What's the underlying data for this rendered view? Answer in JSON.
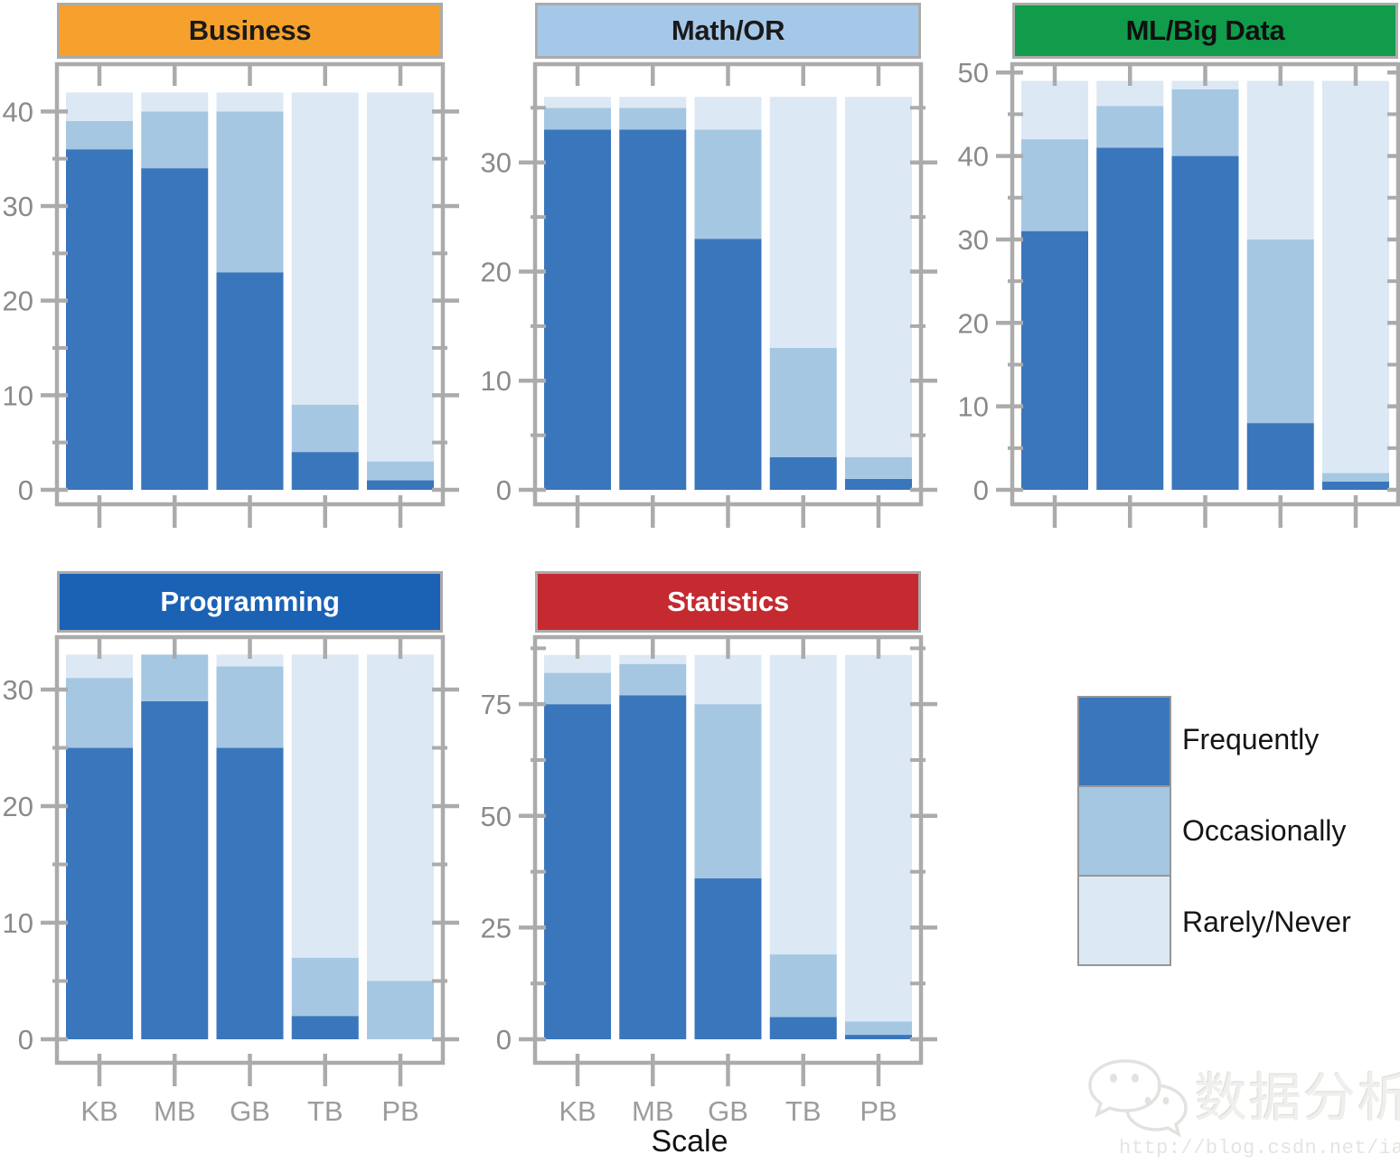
{
  "figure": {
    "xlabel": "Scale",
    "watermark": {
      "title": "数据分析",
      "url": "http://blog.csdn.net/iascchen"
    }
  },
  "legend": {
    "position": "right-bottom",
    "items": [
      {
        "label": "Frequently",
        "color": "#3A76BC"
      },
      {
        "label": "Occasionally",
        "color": "#A5C7E2"
      },
      {
        "label": "Rarely/Never",
        "color": "#DCE8F4"
      }
    ]
  },
  "chart_data": {
    "type": "bar",
    "stacked": true,
    "grid": false,
    "categories": [
      "KB",
      "MB",
      "GB",
      "TB",
      "PB"
    ],
    "xlabel": "Scale",
    "series_order": [
      "Frequently",
      "Occasionally",
      "Rarely/Never"
    ],
    "series_colors": {
      "Frequently": "#3A76BC",
      "Occasionally": "#A5C7E2",
      "Rarely/Never": "#DCE8F4"
    },
    "frame_color": "#ABABAB",
    "panels": [
      {
        "id": "business",
        "title": "Business",
        "header_color": "#F6A12D",
        "header_text_color": "#1A1A1A",
        "ylim": [
          0,
          45
        ],
        "yticks": [
          0,
          10,
          20,
          30,
          40
        ],
        "yticks_minor": [
          5,
          15,
          25,
          35
        ],
        "series": [
          {
            "name": "Frequently",
            "values": [
              36,
              34,
              23,
              4,
              1
            ]
          },
          {
            "name": "Occasionally",
            "values": [
              3,
              6,
              17,
              5,
              2
            ]
          },
          {
            "name": "Rarely/Never",
            "values": [
              3,
              2,
              2,
              33,
              39
            ]
          }
        ],
        "totals": [
          42,
          42,
          42,
          42,
          42
        ]
      },
      {
        "id": "mathor",
        "title": "Math/OR",
        "header_color": "#A6C8E8",
        "header_text_color": "#1A1A1A",
        "ylim": [
          0,
          39
        ],
        "yticks": [
          0,
          10,
          20,
          30
        ],
        "yticks_minor": [
          5,
          15,
          25,
          35
        ],
        "series": [
          {
            "name": "Frequently",
            "values": [
              33,
              33,
              23,
              3,
              1
            ]
          },
          {
            "name": "Occasionally",
            "values": [
              2,
              2,
              10,
              10,
              2
            ]
          },
          {
            "name": "Rarely/Never",
            "values": [
              1,
              1,
              3,
              23,
              33
            ]
          }
        ],
        "totals": [
          36,
          36,
          36,
          36,
          36
        ]
      },
      {
        "id": "ml",
        "title": "ML/Big Data",
        "header_color": "#109C4B",
        "header_text_color": "#101010",
        "ylim": [
          0,
          51
        ],
        "yticks": [
          0,
          10,
          20,
          30,
          40,
          50
        ],
        "yticks_minor": [
          5,
          15,
          25,
          35,
          45
        ],
        "series": [
          {
            "name": "Frequently",
            "values": [
              31,
              41,
              40,
              8,
              1
            ]
          },
          {
            "name": "Occasionally",
            "values": [
              11,
              5,
              8,
              22,
              1
            ]
          },
          {
            "name": "Rarely/Never",
            "values": [
              7,
              3,
              1,
              19,
              47
            ]
          }
        ],
        "totals": [
          49,
          49,
          49,
          49,
          49
        ]
      },
      {
        "id": "programming",
        "title": "Programming",
        "header_color": "#1B62B5",
        "header_text_color": "#FFFFFF",
        "ylim": [
          0,
          34.5
        ],
        "yticks": [
          0,
          10,
          20,
          30
        ],
        "yticks_minor": [
          5,
          15,
          25
        ],
        "series": [
          {
            "name": "Frequently",
            "values": [
              25,
              29,
              25,
              2,
              0
            ]
          },
          {
            "name": "Occasionally",
            "values": [
              6,
              4,
              7,
              5,
              5
            ]
          },
          {
            "name": "Rarely/Never",
            "values": [
              2,
              0,
              1,
              26,
              28
            ]
          }
        ],
        "totals": [
          33,
          33,
          33,
          33,
          33
        ]
      },
      {
        "id": "statistics",
        "title": "Statistics",
        "header_color": "#C52A30",
        "header_text_color": "#FFFFFF",
        "ylim": [
          0,
          90
        ],
        "yticks": [
          0,
          25,
          50,
          75
        ],
        "yticks_minor": [
          12.5,
          37.5,
          62.5,
          87.5
        ],
        "series": [
          {
            "name": "Frequently",
            "values": [
              75,
              77,
              36,
              5,
              1
            ]
          },
          {
            "name": "Occasionally",
            "values": [
              7,
              7,
              39,
              14,
              3
            ]
          },
          {
            "name": "Rarely/Never",
            "values": [
              4,
              2,
              11,
              67,
              82
            ]
          }
        ],
        "totals": [
          86,
          86,
          86,
          86,
          86
        ]
      }
    ]
  }
}
